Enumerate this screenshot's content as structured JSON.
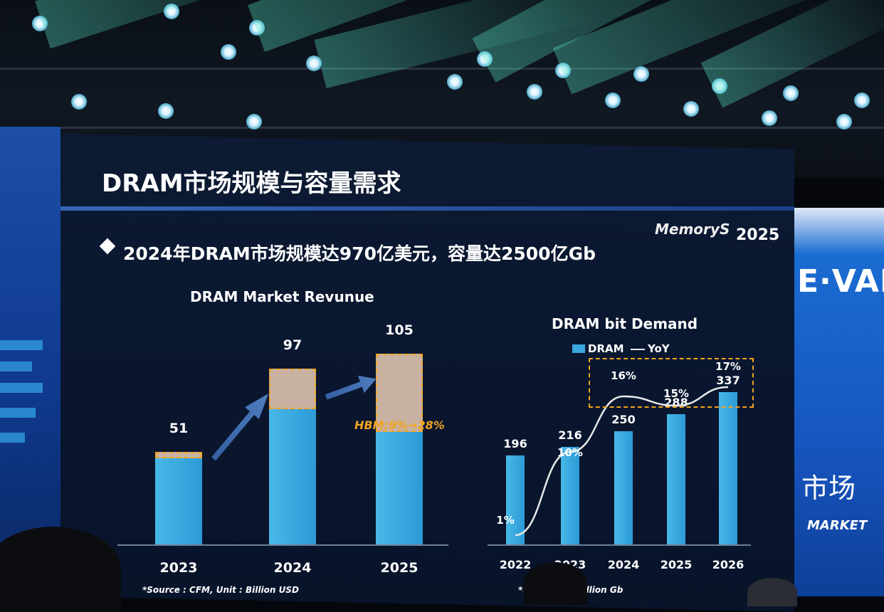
{
  "slide": {
    "title": "DRAM市场规模与容量需求",
    "logo_brand": "MemoryS",
    "logo_year": "2025",
    "bullet": "2024年DRAM市场规模达970亿美元，容量达2500亿Gb"
  },
  "background_panel": {
    "right_top_text": "E·VAI",
    "right_cn_text": "市场",
    "right_en_text": "MARKET"
  },
  "chart_data": [
    {
      "type": "bar",
      "title": "DRAM Market Revunue",
      "categories": [
        "2023",
        "2024",
        "2025"
      ],
      "values": [
        51,
        97,
        105
      ],
      "value_labels": [
        "51",
        "97",
        "105"
      ],
      "hbm_share": [
        0.07,
        0.23,
        0.41
      ],
      "annotation": "HBM:9%→28%",
      "source": "*Source : CFM, Unit : Billion USD",
      "colors": {
        "bar": "#3aa8e0",
        "hbm": "#c9b2a1",
        "hbm_outline": "#f2a321",
        "annotation": "#f2a321"
      }
    },
    {
      "type": "bar",
      "title": "DRAM bit Demand",
      "legend": [
        "DRAM",
        "YoY"
      ],
      "categories": [
        "2022",
        "2023",
        "2024",
        "2025",
        "2026"
      ],
      "values": [
        196,
        216,
        250,
        288,
        337
      ],
      "value_labels": [
        "196",
        "216",
        "250",
        "288",
        "337"
      ],
      "series": [
        {
          "name": "DRAM",
          "values": [
            196,
            216,
            250,
            288,
            337
          ]
        },
        {
          "name": "YoY",
          "values": [
            1,
            10,
            16,
            15,
            17
          ]
        }
      ],
      "yoy_labels": [
        "1%",
        "10%",
        "16%",
        "15%",
        "17%"
      ],
      "source": "*So... Unit : Billion Gb",
      "colors": {
        "bar": "#3aa8e0",
        "line": "#e8e8e8",
        "highlight_box": "#f2a321"
      }
    }
  ]
}
